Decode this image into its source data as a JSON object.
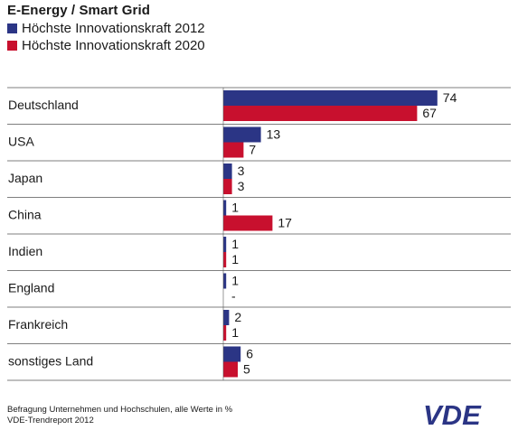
{
  "chart_data": {
    "type": "bar",
    "orientation": "horizontal",
    "title": "E-Energy / Smart Grid",
    "categories": [
      "Deutschland",
      "USA",
      "Japan",
      "China",
      "Indien",
      "England",
      "Frankreich",
      "sonstiges Land"
    ],
    "series": [
      {
        "name": "Höchste Innovationskraft 2012",
        "color": "#2b3585",
        "values": [
          74,
          13,
          3,
          1,
          1,
          1,
          2,
          6
        ],
        "labels": [
          "74",
          "13",
          "3",
          "1",
          "1",
          "1",
          "2",
          "6"
        ]
      },
      {
        "name": "Höchste Innovationskraft 2020",
        "color": "#c8102e",
        "values": [
          67,
          7,
          3,
          17,
          1,
          0,
          1,
          5
        ],
        "labels": [
          "67",
          "7",
          "3",
          "17",
          "1",
          "-",
          "1",
          "5"
        ]
      }
    ],
    "xlim": [
      0,
      100
    ],
    "grid": false,
    "legend": "top-left"
  },
  "footnote": {
    "line1": "Befragung Unternehmen und Hochschulen, alle Werte in %",
    "line2": "VDE-Trendreport 2012"
  },
  "logo": {
    "text": "VDE",
    "color": "#2b3585"
  },
  "colors": {
    "separator": "#555555",
    "axis": "#555555"
  }
}
